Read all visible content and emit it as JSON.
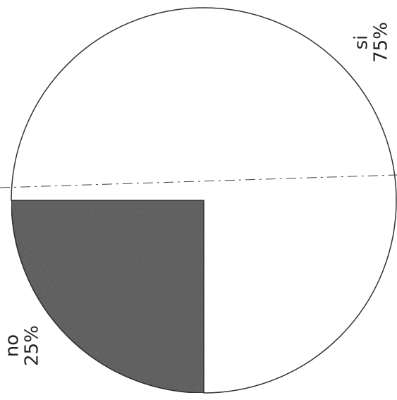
{
  "chart_data": {
    "type": "pie",
    "categories": [
      "si",
      "no"
    ],
    "values": [
      75,
      25
    ],
    "value_labels": [
      "75%",
      "25%"
    ],
    "colors": [
      "#ffffff",
      "#6f6f6f"
    ]
  }
}
